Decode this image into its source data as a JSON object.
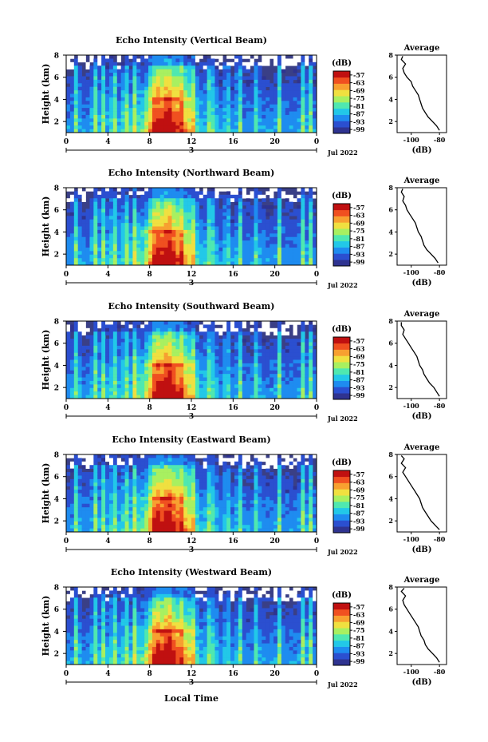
{
  "colorbar": {
    "unit": "(dB)",
    "ticks": [
      "-57",
      "-63",
      "-69",
      "-75",
      "-81",
      "-87",
      "-93",
      "-99"
    ],
    "range": [
      -102,
      -54
    ],
    "colors": [
      "#2f3390",
      "#2b4fd0",
      "#1e8cf0",
      "#22c8e8",
      "#4fe8b0",
      "#a8f060",
      "#f0e040",
      "#f8a030",
      "#f05020",
      "#c01010"
    ]
  },
  "background_color": "#3a3f86",
  "x_axis_bottom_label": "Local Time",
  "average_xlabel": "(dB)",
  "chart_data": [
    {
      "type": "heatmap",
      "title": "Echo Intensity (Vertical Beam)",
      "ylabel": "Height (km)",
      "ylim": [
        1,
        8
      ],
      "yticks": [
        "2",
        "4",
        "6",
        "8"
      ],
      "xlim": [
        0,
        24
      ],
      "xticks": [
        "0",
        "4",
        "8",
        "12",
        "16",
        "20",
        "0"
      ],
      "date_tick": "3",
      "date_label": "Jul 2022",
      "average": {
        "title": "Average",
        "xticks": [
          "-100",
          "-80"
        ],
        "xlim": [
          -110,
          -75
        ],
        "ylim": [
          1,
          8
        ],
        "yticks": [
          "2",
          "4",
          "6",
          "8"
        ],
        "height": [
          1.2,
          1.6,
          2.0,
          2.4,
          2.8,
          3.2,
          3.6,
          4.0,
          4.4,
          4.8,
          5.2,
          5.6,
          6.0,
          6.4,
          6.8,
          7.2,
          7.6,
          7.9
        ],
        "value": [
          -80,
          -82,
          -85,
          -88,
          -90,
          -92,
          -93,
          -94,
          -95,
          -97,
          -99,
          -100,
          -103,
          -105,
          -106,
          -104,
          -107,
          -106
        ]
      }
    },
    {
      "type": "heatmap",
      "title": "Echo Intensity (Northward Beam)",
      "ylabel": "Height (km)",
      "ylim": [
        1,
        8
      ],
      "yticks": [
        "2",
        "4",
        "6",
        "8"
      ],
      "xlim": [
        0,
        24
      ],
      "xticks": [
        "0",
        "4",
        "8",
        "12",
        "16",
        "20",
        "0"
      ],
      "date_tick": "3",
      "date_label": "Jul 2022",
      "average": {
        "title": "Average",
        "xticks": [
          "-100",
          "-80"
        ],
        "xlim": [
          -110,
          -75
        ],
        "ylim": [
          1,
          8
        ],
        "yticks": [
          "2",
          "4",
          "6",
          "8"
        ],
        "height": [
          1.2,
          1.6,
          2.0,
          2.4,
          2.8,
          3.2,
          3.6,
          4.0,
          4.4,
          4.8,
          5.2,
          5.6,
          6.0,
          6.4,
          6.8,
          7.2,
          7.6,
          7.9
        ],
        "value": [
          -81,
          -83,
          -86,
          -89,
          -91,
          -92,
          -93,
          -95,
          -96,
          -97,
          -99,
          -101,
          -103,
          -104,
          -106,
          -105,
          -107,
          -106
        ]
      }
    },
    {
      "type": "heatmap",
      "title": "Echo Intensity (Southward Beam)",
      "ylabel": "Height (km)",
      "ylim": [
        1,
        8
      ],
      "yticks": [
        "2",
        "4",
        "6",
        "8"
      ],
      "xlim": [
        0,
        24
      ],
      "xticks": [
        "0",
        "4",
        "8",
        "12",
        "16",
        "20",
        "0"
      ],
      "date_tick": "3",
      "date_label": "Jul 2022",
      "average": {
        "title": "Average",
        "xticks": [
          "-100",
          "-80"
        ],
        "xlim": [
          -110,
          -75
        ],
        "ylim": [
          1,
          8
        ],
        "yticks": [
          "2",
          "4",
          "6",
          "8"
        ],
        "height": [
          1.2,
          1.6,
          2.0,
          2.4,
          2.8,
          3.2,
          3.6,
          4.0,
          4.4,
          4.8,
          5.2,
          5.6,
          6.0,
          6.4,
          6.8,
          7.2,
          7.6,
          7.9
        ],
        "value": [
          -80,
          -82,
          -84,
          -87,
          -89,
          -91,
          -92,
          -94,
          -95,
          -96,
          -98,
          -100,
          -102,
          -104,
          -106,
          -105,
          -107,
          -107
        ]
      }
    },
    {
      "type": "heatmap",
      "title": "Echo Intensity (Eastward Beam)",
      "ylabel": "Height (km)",
      "ylim": [
        1,
        8
      ],
      "yticks": [
        "2",
        "4",
        "6",
        "8"
      ],
      "xlim": [
        0,
        24
      ],
      "xticks": [
        "0",
        "4",
        "8",
        "12",
        "16",
        "20",
        "0"
      ],
      "date_tick": "3",
      "date_label": "Jul 2022",
      "average": {
        "title": "Average",
        "xticks": [
          "-100",
          "-80"
        ],
        "xlim": [
          -110,
          -75
        ],
        "ylim": [
          1,
          8
        ],
        "yticks": [
          "2",
          "4",
          "6",
          "8"
        ],
        "height": [
          1.2,
          1.6,
          2.0,
          2.4,
          2.8,
          3.2,
          3.6,
          4.0,
          4.4,
          4.8,
          5.2,
          5.6,
          6.0,
          6.4,
          6.8,
          7.2,
          7.6,
          7.9
        ],
        "value": [
          -80,
          -83,
          -86,
          -88,
          -90,
          -92,
          -93,
          -94,
          -96,
          -98,
          -100,
          -102,
          -104,
          -106,
          -104,
          -107,
          -105,
          -107
        ]
      }
    },
    {
      "type": "heatmap",
      "title": "Echo Intensity (Westward Beam)",
      "ylabel": "Height (km)",
      "ylim": [
        1,
        8
      ],
      "yticks": [
        "2",
        "4",
        "6",
        "8"
      ],
      "xlim": [
        0,
        24
      ],
      "xticks": [
        "0",
        "4",
        "8",
        "12",
        "16",
        "20",
        "0"
      ],
      "date_tick": "3",
      "date_label": "Jul 2022",
      "average": {
        "title": "Average",
        "xticks": [
          "-100",
          "-80"
        ],
        "xlim": [
          -110,
          -75
        ],
        "ylim": [
          1,
          8
        ],
        "yticks": [
          "2",
          "4",
          "6",
          "8"
        ],
        "height": [
          1.2,
          1.6,
          2.0,
          2.4,
          2.8,
          3.2,
          3.6,
          4.0,
          4.4,
          4.8,
          5.2,
          5.6,
          6.0,
          6.4,
          6.8,
          7.2,
          7.6,
          7.9
        ],
        "value": [
          -80,
          -82,
          -85,
          -88,
          -90,
          -91,
          -93,
          -94,
          -95,
          -97,
          -99,
          -101,
          -103,
          -105,
          -106,
          -104,
          -107,
          -105
        ]
      }
    }
  ]
}
